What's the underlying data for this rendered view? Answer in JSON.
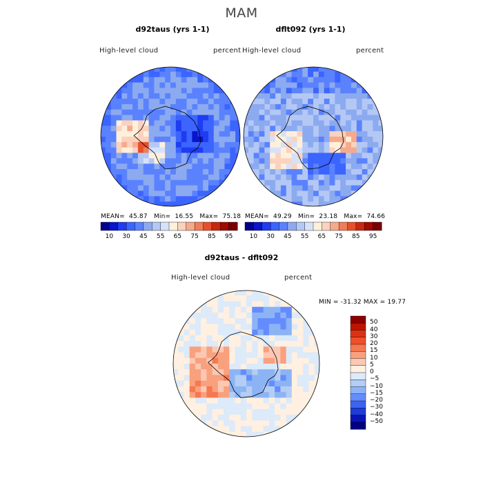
{
  "figure": {
    "title": "MAM"
  },
  "panels": [
    {
      "title": "d92taus (yrs 1-1)",
      "variable": "High-level  cloud",
      "units": "percent",
      "stats": {
        "mean_label": "MEAN=",
        "mean": "45.87",
        "min_label": "Min=",
        "min": "16.55",
        "max_label": "Max=",
        "max": "75.18"
      }
    },
    {
      "title": "dflt092 (yrs 1-1)",
      "variable": "High-level  cloud",
      "units": "percent",
      "stats": {
        "mean_label": "MEAN=",
        "mean": "49.29",
        "min_label": "Min=",
        "min": "23.18",
        "max_label": "Max=",
        "max": "74.66"
      }
    },
    {
      "title": "d92taus - dflt092",
      "variable": "High-level  cloud",
      "units": "percent",
      "stats_text": "MIN = -31.32  MAX =   19.77"
    }
  ],
  "chart_data": [
    {
      "type": "heatmap",
      "title": "d92taus (yrs 1-1)",
      "projection": "south polar stereographic",
      "variable": "High-level cloud",
      "units": "percent",
      "summary": {
        "mean": 45.87,
        "min": 16.55,
        "max": 75.18
      },
      "colorbar": {
        "levels": [
          10,
          20,
          30,
          40,
          45,
          50,
          55,
          60,
          65,
          70,
          75,
          80,
          85,
          90,
          95
        ],
        "tick_labels": [
          "10",
          "30",
          "45",
          "55",
          "65",
          "75",
          "85",
          "95"
        ],
        "colors": [
          "#00008c",
          "#0a14c8",
          "#1e3cf0",
          "#3c64ff",
          "#5a82ff",
          "#8caaf0",
          "#b4c8f5",
          "#d7e1fa",
          "#fff0dc",
          "#fad2be",
          "#f5aa8c",
          "#f07d5a",
          "#e6502d",
          "#c8280f",
          "#a00a00",
          "#780000"
        ]
      }
    },
    {
      "type": "heatmap",
      "title": "dflt092 (yrs 1-1)",
      "projection": "south polar stereographic",
      "variable": "High-level cloud",
      "units": "percent",
      "summary": {
        "mean": 49.29,
        "min": 23.18,
        "max": 74.66
      },
      "colorbar": {
        "levels": [
          10,
          20,
          30,
          40,
          45,
          50,
          55,
          60,
          65,
          70,
          75,
          80,
          85,
          90,
          95
        ],
        "tick_labels": [
          "10",
          "30",
          "45",
          "55",
          "65",
          "75",
          "85",
          "95"
        ],
        "colors": [
          "#00008c",
          "#0a14c8",
          "#1e3cf0",
          "#3c64ff",
          "#5a82ff",
          "#8caaf0",
          "#b4c8f5",
          "#d7e1fa",
          "#fff0dc",
          "#fad2be",
          "#f5aa8c",
          "#f07d5a",
          "#e6502d",
          "#c8280f",
          "#a00a00",
          "#780000"
        ]
      }
    },
    {
      "type": "heatmap",
      "title": "d92taus - dflt092",
      "projection": "south polar stereographic",
      "variable": "High-level cloud",
      "units": "percent",
      "summary": {
        "min": -31.32,
        "max": 19.77
      },
      "colorbar": {
        "levels": [
          -50,
          -40,
          -30,
          -20,
          -15,
          -10,
          -5,
          0,
          5,
          10,
          15,
          20,
          30,
          40,
          50
        ],
        "tick_labels": [
          "50",
          "40",
          "30",
          "20",
          "15",
          "10",
          "5",
          "0",
          "−5",
          "−10",
          "−15",
          "−20",
          "−30",
          "−40",
          "−50"
        ],
        "colors": [
          "#8c0000",
          "#be1400",
          "#dc3214",
          "#f05028",
          "#f57850",
          "#f9a07d",
          "#fcc8b4",
          "#fff0e1",
          "#dceafa",
          "#b4cdf5",
          "#8cb4f5",
          "#648cff",
          "#3c64f0",
          "#1e3cdc",
          "#0a14b4",
          "#000082"
        ]
      }
    }
  ]
}
